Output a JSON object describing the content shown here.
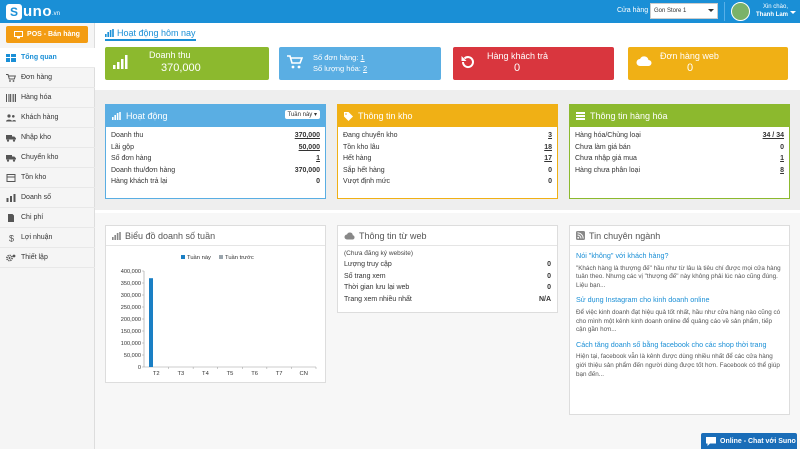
{
  "brand": {
    "letter": "S",
    "name": "uno",
    "domain": ".vn"
  },
  "topbar": {
    "store_label": "Cửa hàng",
    "store_value": "Gon Store 1",
    "greeting": "Xin chào,",
    "username": "Thanh Lam"
  },
  "sidebar": {
    "pos_button": "POS - Bán hàng",
    "items": [
      {
        "label": "Tổng quan",
        "icon": "dashboard-icon"
      },
      {
        "label": "Đơn hàng",
        "icon": "cart-icon"
      },
      {
        "label": "Hàng hóa",
        "icon": "barcode-icon"
      },
      {
        "label": "Khách hàng",
        "icon": "users-icon"
      },
      {
        "label": "Nhập kho",
        "icon": "truck-icon"
      },
      {
        "label": "Chuyển kho",
        "icon": "truck-icon"
      },
      {
        "label": "Tồn kho",
        "icon": "box-icon"
      },
      {
        "label": "Doanh số",
        "icon": "chart-icon"
      },
      {
        "label": "Chi phí",
        "icon": "file-icon"
      },
      {
        "label": "Lợi nhuận",
        "icon": "dollar-icon"
      },
      {
        "label": "Thiết lập",
        "icon": "gear-icon"
      }
    ]
  },
  "page_title": "Hoạt động hôm nay",
  "tiles": {
    "revenue": {
      "label": "Doanh thu",
      "value": "370,000",
      "color": "#8cb92e"
    },
    "orders": {
      "label1": "Số đơn hàng: ",
      "v1": "1",
      "label2": "Số lượng hóa: ",
      "v2": "2",
      "color": "#5aaee3"
    },
    "returns": {
      "label": "Hàng khách trả",
      "value": "0",
      "color": "#d9363e"
    },
    "web": {
      "label": "Đơn hàng web",
      "value": "0",
      "color": "#f0b015"
    }
  },
  "activity": {
    "title": "Hoạt động",
    "period": "Tuần này",
    "rows": [
      {
        "label": "Doanh thu",
        "value": "370,000"
      },
      {
        "label": "Lãi gộp",
        "value": "50,000"
      },
      {
        "label": "Số đơn hàng",
        "value": "1"
      },
      {
        "label": "Doanh thu/đơn hàng",
        "value": "370,000"
      },
      {
        "label": "Hàng khách trả lại",
        "value": "0"
      }
    ]
  },
  "stock": {
    "title": "Thông tin kho",
    "rows": [
      {
        "label": "Đang chuyển kho",
        "value": "3"
      },
      {
        "label": "Tồn kho lâu",
        "value": "18"
      },
      {
        "label": "Hết hàng",
        "value": "17"
      },
      {
        "label": "Sắp hết hàng",
        "value": "0"
      },
      {
        "label": "Vượt định mức",
        "value": "0"
      }
    ]
  },
  "products": {
    "title": "Thông tin hàng hóa",
    "rows": [
      {
        "label": "Hàng hóa/Chủng loại",
        "value": "34 / 34"
      },
      {
        "label": "Chưa làm giá bán",
        "value": "0"
      },
      {
        "label": "Chưa nhập giá mua",
        "value": "1"
      },
      {
        "label": "Hàng chưa phân loại",
        "value": "8"
      }
    ]
  },
  "chart_panel": {
    "title": "Biểu đồ doanh số tuần"
  },
  "chart_data": {
    "type": "bar",
    "categories": [
      "T2",
      "T3",
      "T4",
      "T5",
      "T6",
      "T7",
      "CN"
    ],
    "series": [
      {
        "name": "Tuần này",
        "values": [
          370000,
          0,
          0,
          0,
          0,
          0,
          0
        ],
        "color": "#1a7fc4"
      },
      {
        "name": "Tuần trước",
        "values": [
          0,
          0,
          0,
          0,
          0,
          0,
          0
        ],
        "color": "#9aa5ad"
      }
    ],
    "ylim": [
      0,
      400000
    ],
    "yticks": [
      "400,000",
      "350,000",
      "300,000",
      "250,000",
      "200,000",
      "150,000",
      "100,000",
      "50,000",
      "0"
    ],
    "legend": "top"
  },
  "web_info": {
    "title": "Thông tin từ web",
    "note": "(Chưa đăng ký website)",
    "rows": [
      {
        "label": "Lượng truy cập",
        "value": "0"
      },
      {
        "label": "Số trang xem",
        "value": "0"
      },
      {
        "label": "Thời gian lưu lại web",
        "value": "0"
      },
      {
        "label": "Trang xem nhiều nhất",
        "value": "N/A"
      }
    ]
  },
  "news": {
    "title": "Tin chuyên ngành",
    "items": [
      {
        "title": "Nói \"không\" với khách hàng?",
        "body": "\"Khách hàng là thượng đế\" hầu như từ lâu là tiêu chí được mọi cửa hàng tuân theo. Nhưng các vị \"thượng đế\" này không phải lúc nào cũng đúng. Liệu bạn..."
      },
      {
        "title": "Sử dụng Instagram cho kinh doanh online",
        "body": "Để việc kinh doanh đạt hiệu quả tốt nhất, hầu như cửa hàng nào cũng có cho mình một kênh kinh doanh online để quảng cáo về sản phẩm, tiếp cận gần hơn..."
      },
      {
        "title": "Cách tăng doanh số bằng facebook cho các shop thời trang",
        "body": "Hiện tại, facebook vẫn là kênh được dùng nhiều nhất để các cửa hàng giới thiệu sản phẩm đến người dùng được tốt hơn. Facebook có thể giúp bạn đến..."
      }
    ]
  },
  "chat": {
    "label": "Online - Chat với Suno"
  }
}
